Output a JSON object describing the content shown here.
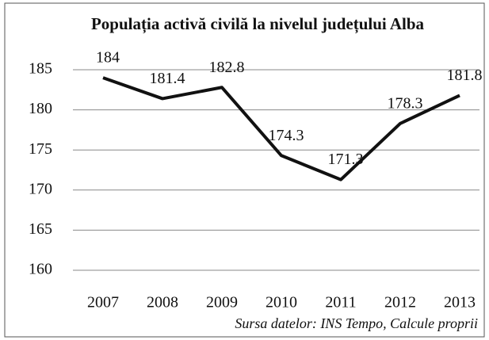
{
  "chart_data": {
    "type": "line",
    "title": "Populația activă civilă la nivelul județului Alba",
    "source": "Sursa datelor: INS Tempo, Calcule proprii",
    "categories": [
      "2007",
      "2008",
      "2009",
      "2010",
      "2011",
      "2012",
      "2013"
    ],
    "series": [
      {
        "name": "Populația activă civilă",
        "color": "#111111",
        "values": [
          184,
          181.4,
          182.8,
          174.3,
          171.3,
          178.3,
          181.8
        ]
      }
    ],
    "ylim": [
      160,
      185
    ],
    "yticks": [
      160,
      165,
      170,
      175,
      180,
      185
    ],
    "grid": true
  }
}
